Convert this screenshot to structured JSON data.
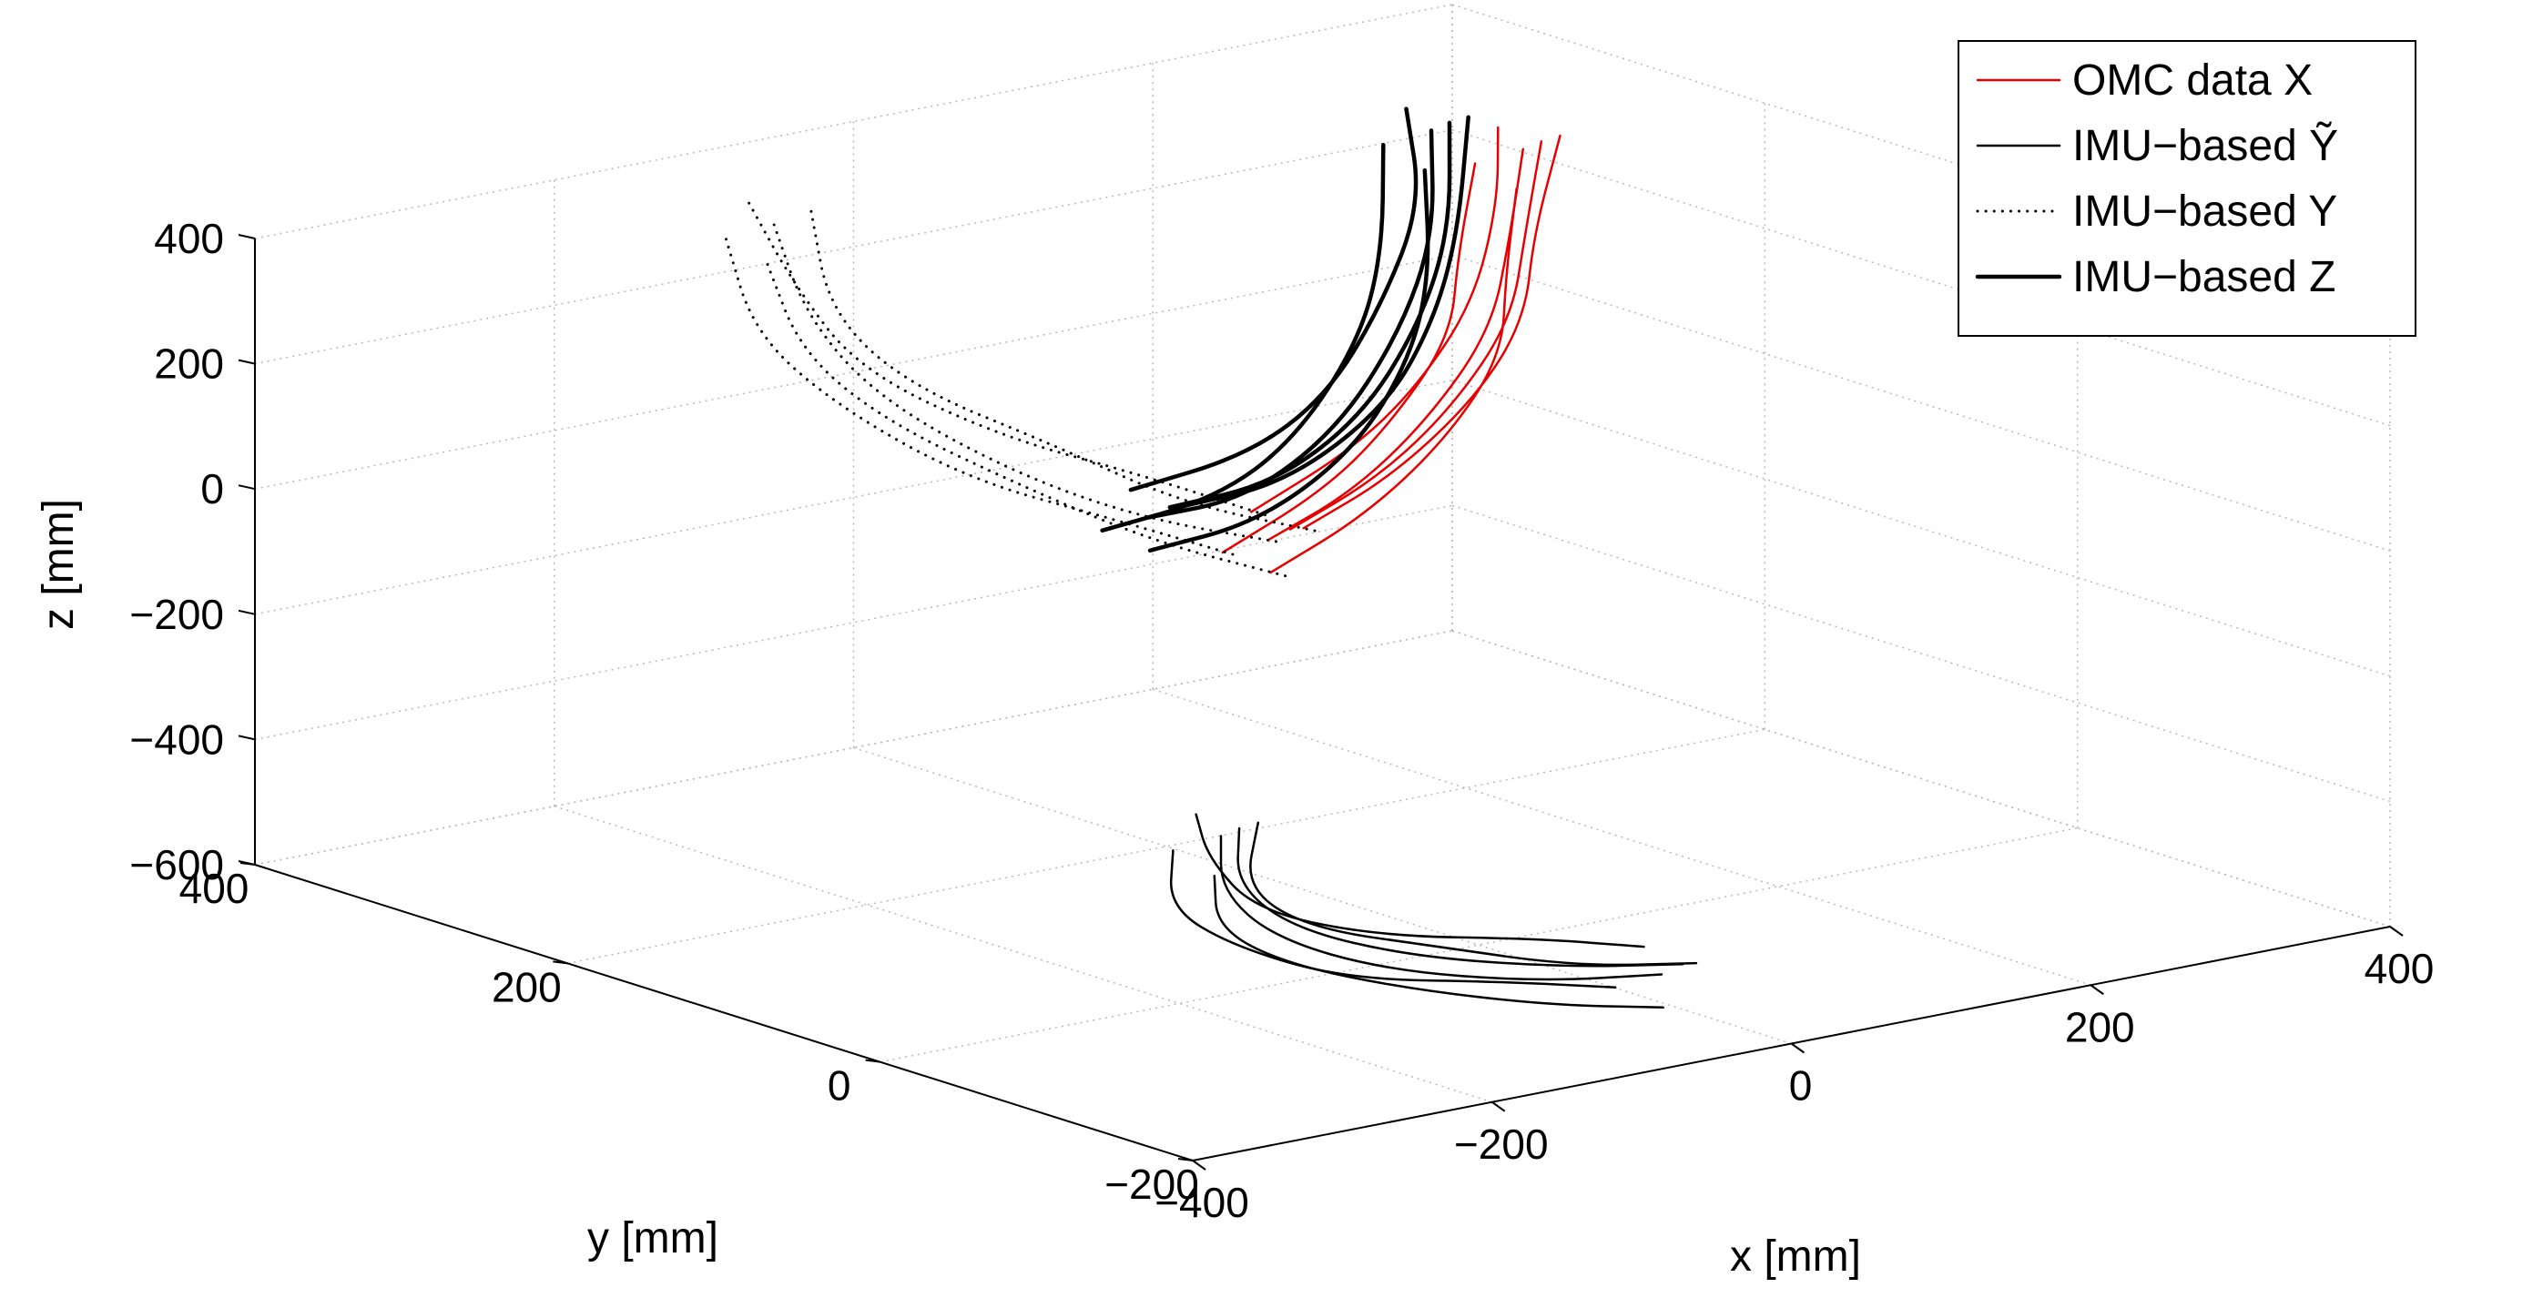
{
  "chart_data": {
    "type": "line",
    "projection": "3d",
    "xlabel": "x [mm]",
    "ylabel": "y [mm]",
    "zlabel": "z [mm]",
    "xlim": [
      -400,
      400
    ],
    "ylim": [
      -200,
      400
    ],
    "zlim": [
      -600,
      400
    ],
    "x_ticks": [
      "−400",
      "−200",
      "0",
      "200",
      "400"
    ],
    "y_ticks": [
      "−200",
      "0",
      "200",
      "400"
    ],
    "z_ticks": [
      "−600",
      "−400",
      "−200",
      "0",
      "200",
      "400"
    ],
    "grid": true,
    "legend_position": "top-right",
    "series": [
      {
        "name": "OMC data X",
        "color": "#e60000",
        "style": "solid",
        "width": "thin",
        "values": [
          {
            "x": 370,
            "y": 330,
            "z": 230
          },
          {
            "x": 340,
            "y": 310,
            "z": 120
          },
          {
            "x": 300,
            "y": 280,
            "z": 20
          },
          {
            "x": 230,
            "y": 250,
            "z": -60
          },
          {
            "x": 150,
            "y": 220,
            "z": -110
          },
          {
            "x": 70,
            "y": 200,
            "z": -140
          }
        ]
      },
      {
        "name": "IMU−based Ỹ",
        "color": "#000000",
        "style": "solid",
        "width": "thin",
        "values": [
          {
            "x": -260,
            "y": -80,
            "z": -250
          },
          {
            "x": -250,
            "y": -70,
            "z": -350
          },
          {
            "x": -200,
            "y": -60,
            "z": -450
          },
          {
            "x": -120,
            "y": -60,
            "z": -530
          },
          {
            "x": -30,
            "y": -70,
            "z": -580
          },
          {
            "x": 40,
            "y": -80,
            "z": -600
          }
        ]
      },
      {
        "name": "IMU−based Y",
        "color": "#000000",
        "style": "dotted",
        "width": "thin",
        "values": [
          {
            "x": -120,
            "y": 340,
            "z": 330
          },
          {
            "x": -120,
            "y": 320,
            "z": 200
          },
          {
            "x": -90,
            "y": 300,
            "z": 80
          },
          {
            "x": -40,
            "y": 260,
            "z": -20
          },
          {
            "x": 20,
            "y": 230,
            "z": -100
          },
          {
            "x": 80,
            "y": 200,
            "z": -150
          }
        ]
      },
      {
        "name": "IMU−based Z",
        "color": "#000000",
        "style": "solid",
        "width": "thick",
        "values": [
          {
            "x": 340,
            "y": 360,
            "z": 250
          },
          {
            "x": 310,
            "y": 330,
            "z": 120
          },
          {
            "x": 260,
            "y": 300,
            "z": 20
          },
          {
            "x": 180,
            "y": 260,
            "z": -60
          },
          {
            "x": 90,
            "y": 230,
            "z": -100
          },
          {
            "x": 0,
            "y": 210,
            "z": -80
          }
        ]
      }
    ]
  }
}
